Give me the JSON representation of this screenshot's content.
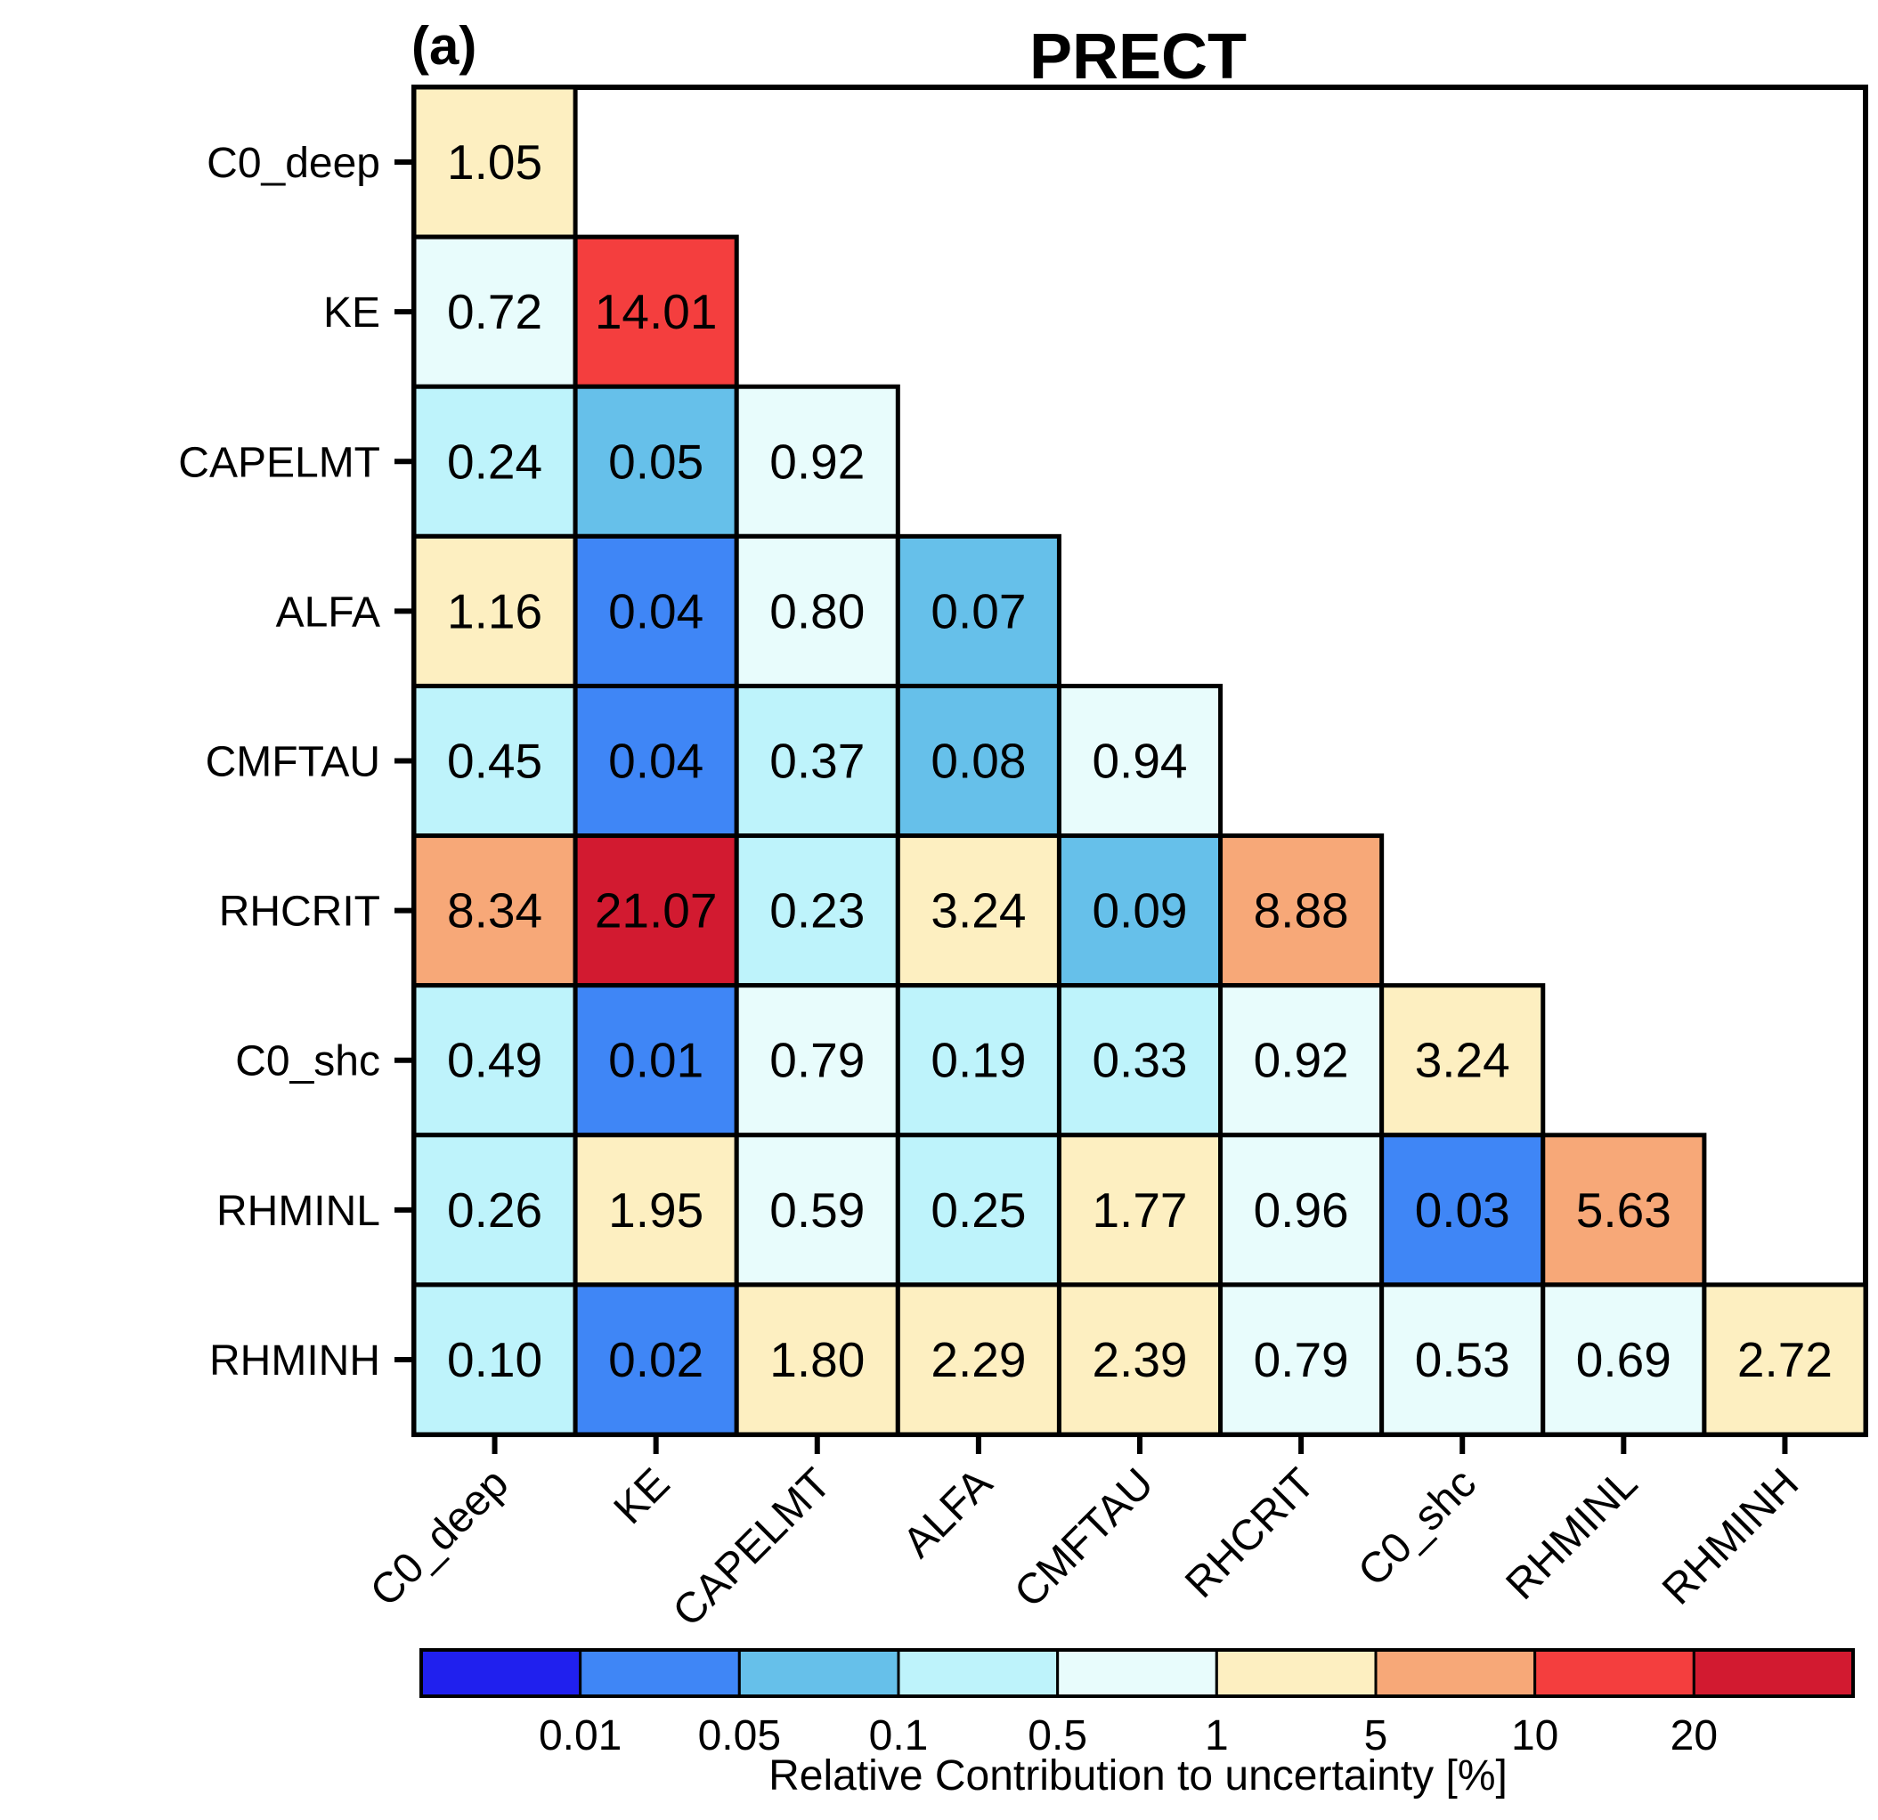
{
  "chart_data": {
    "type": "heatmap",
    "panel_label": "(a)",
    "title": "PRECT",
    "categories": [
      "C0_deep",
      "KE",
      "CAPELMT",
      "ALFA",
      "CMFTAU",
      "RHCRIT",
      "C0_shc",
      "RHMINL",
      "RHMINH"
    ],
    "values": [
      [
        "1.05"
      ],
      [
        "0.72",
        "14.01"
      ],
      [
        "0.24",
        "0.05",
        "0.92"
      ],
      [
        "1.16",
        "0.04",
        "0.80",
        "0.07"
      ],
      [
        "0.45",
        "0.04",
        "0.37",
        "0.08",
        "0.94"
      ],
      [
        "8.34",
        "21.07",
        "0.23",
        "3.24",
        "0.09",
        "8.88"
      ],
      [
        "0.49",
        "0.01",
        "0.79",
        "0.19",
        "0.33",
        "0.92",
        "3.24"
      ],
      [
        "0.26",
        "1.95",
        "0.59",
        "0.25",
        "1.77",
        "0.96",
        "0.03",
        "5.63"
      ],
      [
        "0.10",
        "0.02",
        "1.80",
        "2.29",
        "2.39",
        "0.79",
        "0.53",
        "0.69",
        "2.72"
      ]
    ],
    "colorbar": {
      "thresholds": [
        "0.01",
        "0.05",
        "0.1",
        "0.5",
        "1",
        "5",
        "10",
        "20"
      ],
      "colors": [
        "#2020ee",
        "#3f86f6",
        "#66c0ea",
        "#bef3fb",
        "#e8fcfc",
        "#fdefc1",
        "#f7a878",
        "#f43e3e",
        "#d21a30"
      ],
      "label": "Relative Contribution to uncertainty [%]"
    },
    "grid": true
  }
}
